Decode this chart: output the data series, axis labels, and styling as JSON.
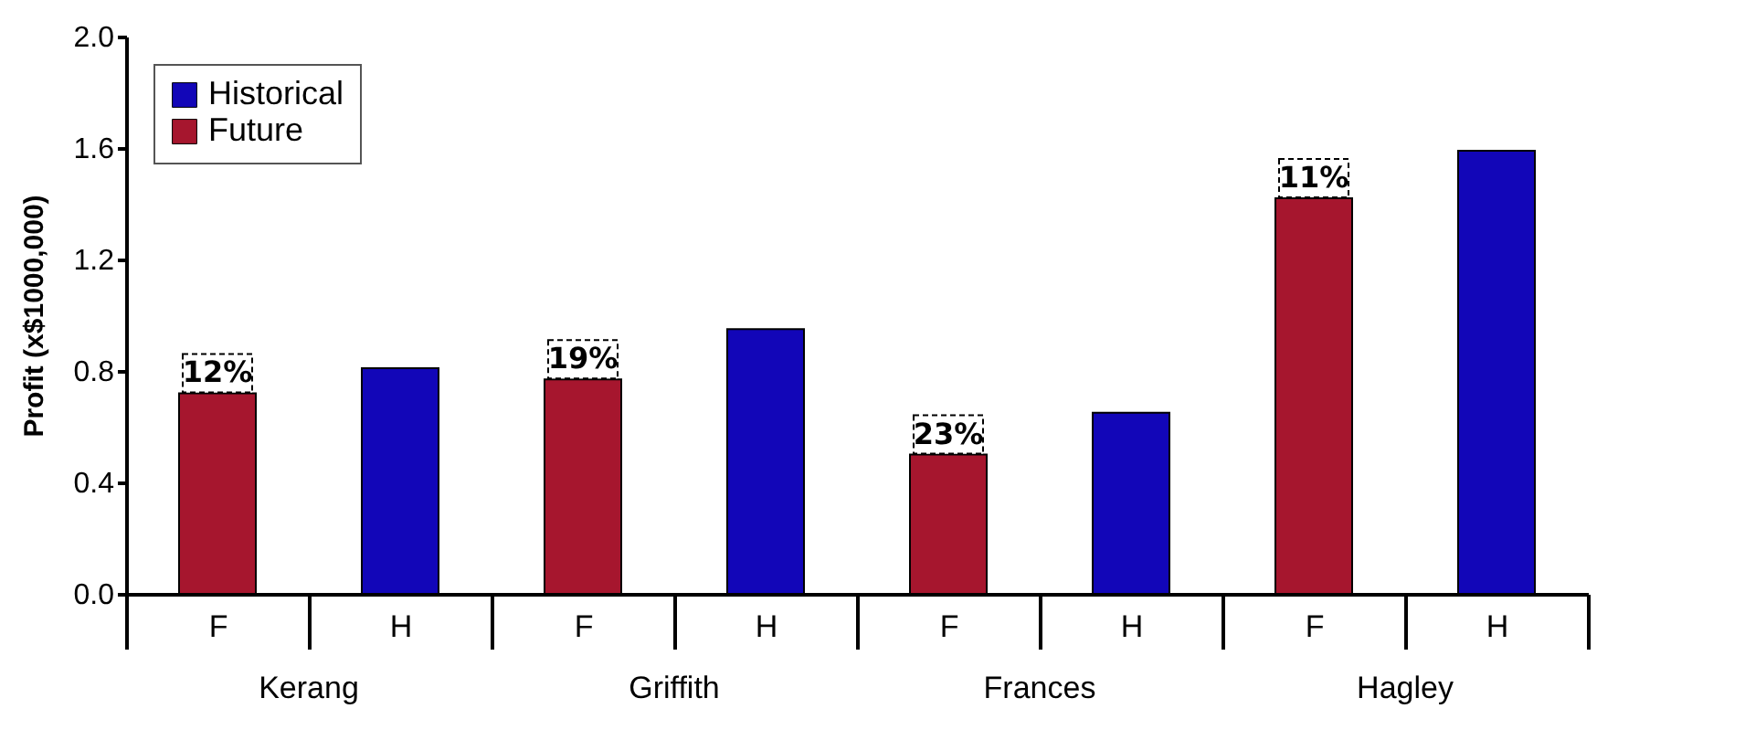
{
  "chart_data": {
    "type": "bar",
    "ylabel": "Profit (x$1000,000)",
    "categories": [
      "F",
      "H",
      "F",
      "H",
      "F",
      "H",
      "F",
      "H"
    ],
    "annotations": [
      "Kerang",
      "Griffith",
      "Frances",
      "Hagley",
      "12%",
      "19%",
      "23%",
      "11%"
    ],
    "series": [
      {
        "name": "Historical",
        "color": "#1206b8",
        "values": [
          null,
          0.81,
          null,
          0.95,
          null,
          0.65,
          null,
          1.59
        ]
      },
      {
        "name": "Future",
        "color": "#a6162e",
        "values": [
          0.72,
          null,
          0.77,
          null,
          0.5,
          null,
          1.42,
          null
        ]
      }
    ],
    "ylim": [
      0,
      2.0
    ],
    "yticks": [
      {
        "value": 0,
        "label": "0.0"
      },
      {
        "value": 0.4,
        "label": "0.4"
      },
      {
        "value": 0.8,
        "label": "0.8"
      },
      {
        "value": 1.2,
        "label": "1.2"
      },
      {
        "value": 1.6,
        "label": "1.6"
      },
      {
        "value": 2.0,
        "label": "2.0"
      }
    ],
    "grid": false,
    "legend": "top left"
  }
}
